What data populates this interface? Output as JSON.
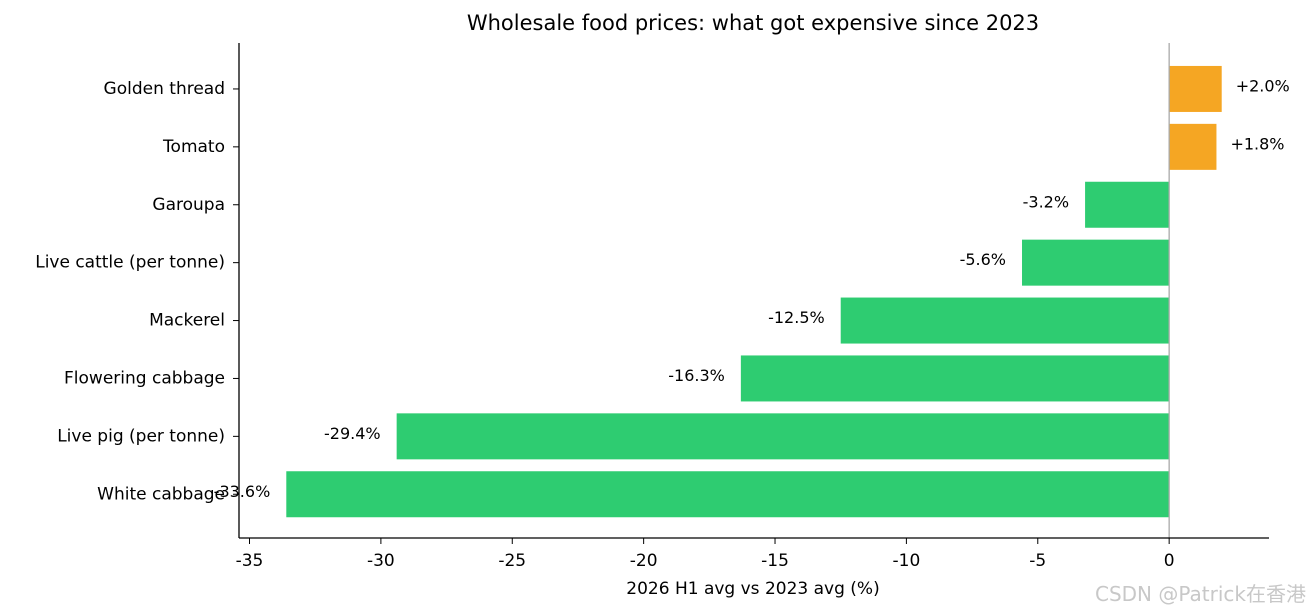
{
  "chart_data": {
    "type": "bar",
    "orientation": "horizontal",
    "title": "Wholesale food prices: what got expensive since 2023",
    "xlabel": "2026 H1 avg vs 2023 avg (%)",
    "ylabel": "",
    "xlim": [
      -35.4,
      3.8
    ],
    "xticks": [
      -35,
      -30,
      -25,
      -20,
      -15,
      -10,
      -5,
      0
    ],
    "categories": [
      "Golden thread",
      "Tomato",
      "Garoupa",
      "Live cattle (per tonne)",
      "Mackerel",
      "Flowering cabbage",
      "Live pig (per tonne)",
      "White cabbage"
    ],
    "values": [
      2.0,
      1.8,
      -3.2,
      -5.6,
      -12.5,
      -16.3,
      -29.4,
      -33.6
    ],
    "data_labels": [
      "+2.0%",
      "+1.8%",
      "-3.2%",
      "-5.6%",
      "-12.5%",
      "-16.3%",
      "-29.4%",
      "-33.6%"
    ],
    "colors": {
      "positive": "#f5a623",
      "negative": "#2ecc71",
      "zero_line": "#aaaaaa"
    },
    "grid": false
  },
  "watermark": "CSDN @Patrick在香港"
}
